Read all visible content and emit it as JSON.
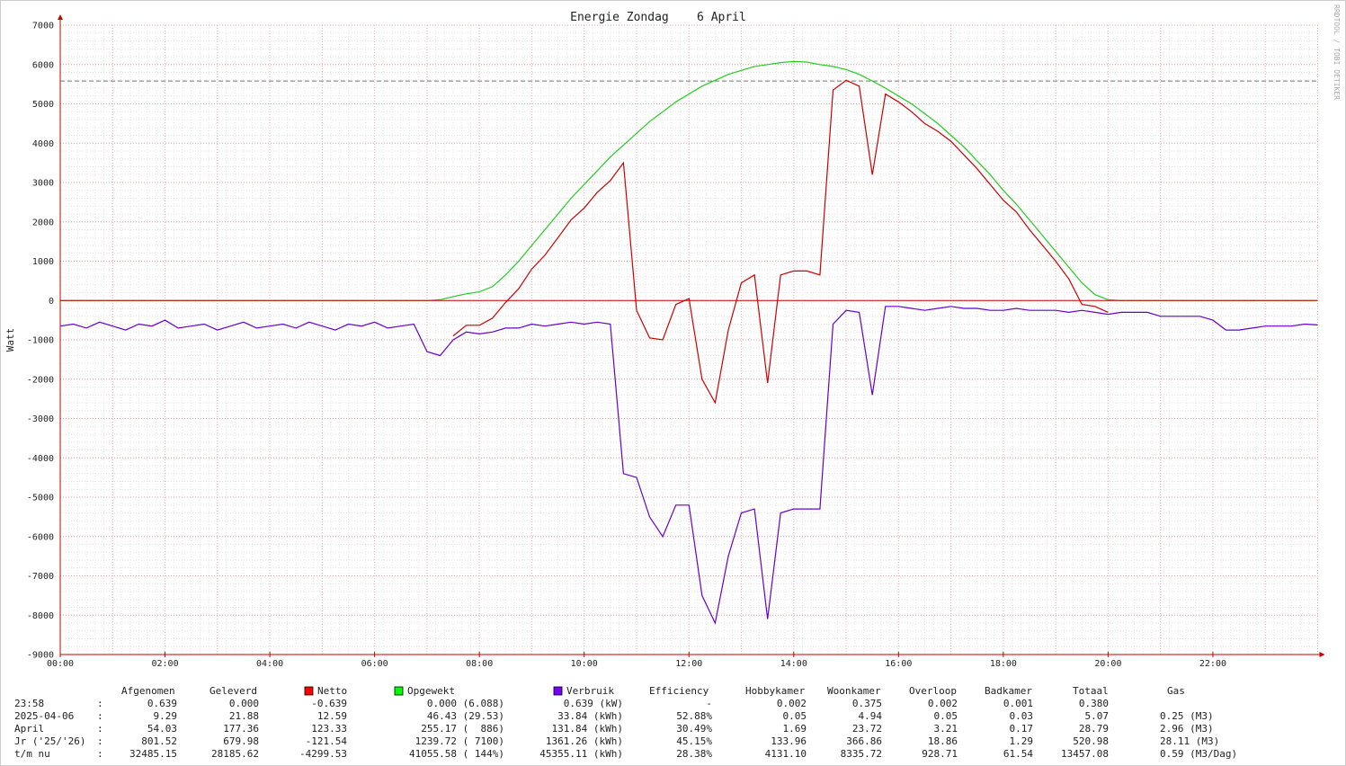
{
  "chart_data": {
    "type": "line",
    "title": "Energie Zondag    6 April",
    "y_label": "Watt",
    "watermark": "RRDTOOL / TOBI OETIKER",
    "xlim": [
      0,
      24
    ],
    "xticks": [
      {
        "value": 0,
        "label": "00:00"
      },
      {
        "value": 2,
        "label": "02:00"
      },
      {
        "value": 4,
        "label": "04:00"
      },
      {
        "value": 6,
        "label": "06:00"
      },
      {
        "value": 8,
        "label": "08:00"
      },
      {
        "value": 10,
        "label": "10:00"
      },
      {
        "value": 12,
        "label": "12:00"
      },
      {
        "value": 14,
        "label": "14:00"
      },
      {
        "value": 16,
        "label": "16:00"
      },
      {
        "value": 18,
        "label": "18:00"
      },
      {
        "value": 20,
        "label": "20:00"
      },
      {
        "value": 22,
        "label": "22:00"
      }
    ],
    "ylim": [
      -9000,
      7000
    ],
    "yticks": [
      -9000,
      -8000,
      -7000,
      -6000,
      -5000,
      -4000,
      -3000,
      -2000,
      -1000,
      0,
      1000,
      2000,
      3000,
      4000,
      5000,
      6000,
      7000
    ],
    "grid": true,
    "reference_line": 5580,
    "x": [
      0,
      0.25,
      0.5,
      0.75,
      1,
      1.25,
      1.5,
      1.75,
      2,
      2.25,
      2.5,
      2.75,
      3,
      3.25,
      3.5,
      3.75,
      4,
      4.25,
      4.5,
      4.75,
      5,
      5.25,
      5.5,
      5.75,
      6,
      6.25,
      6.5,
      6.75,
      7,
      7.25,
      7.5,
      7.75,
      8,
      8.25,
      8.5,
      8.75,
      9,
      9.25,
      9.5,
      9.75,
      10,
      10.25,
      10.5,
      10.75,
      11,
      11.25,
      11.5,
      11.75,
      12,
      12.25,
      12.5,
      12.75,
      13,
      13.25,
      13.5,
      13.75,
      14,
      14.25,
      14.5,
      14.75,
      15,
      15.25,
      15.5,
      15.75,
      16,
      16.25,
      16.5,
      16.75,
      17,
      17.25,
      17.5,
      17.75,
      18,
      18.25,
      18.5,
      18.75,
      19,
      19.25,
      19.5,
      19.75,
      20,
      20.25,
      20.5,
      20.75,
      21,
      21.25,
      21.5,
      21.75,
      22,
      22.25,
      22.5,
      22.75,
      23,
      23.25,
      23.5,
      23.75,
      24
    ],
    "series": [
      {
        "name": "Netto",
        "color": "#cc0000",
        "legend_color": "#ff0000",
        "values": [
          null,
          null,
          null,
          null,
          null,
          null,
          null,
          null,
          null,
          null,
          null,
          null,
          null,
          null,
          null,
          null,
          null,
          null,
          null,
          null,
          null,
          null,
          null,
          null,
          null,
          null,
          null,
          null,
          null,
          null,
          -900,
          -630,
          -630,
          -450,
          -50,
          300,
          800,
          1150,
          1600,
          2050,
          2350,
          2750,
          3050,
          3500,
          -250,
          -950,
          -1000,
          -100,
          50,
          -2000,
          -2600,
          -750,
          450,
          650,
          -2100,
          650,
          750,
          750,
          650,
          5350,
          5600,
          5450,
          3200,
          5250,
          5050,
          4800,
          4500,
          4300,
          4050,
          3700,
          3350,
          2950,
          2550,
          2250,
          1800,
          1400,
          1000,
          550,
          -100,
          -150,
          -300,
          null,
          null,
          null,
          null,
          null,
          null,
          null,
          null,
          null,
          null,
          null,
          null,
          null,
          null,
          null,
          null
        ]
      },
      {
        "name": "Opgewekt",
        "color": "#22cc22",
        "legend_color": "#00ff00",
        "values": [
          0,
          0,
          0,
          0,
          0,
          0,
          0,
          0,
          0,
          0,
          0,
          0,
          0,
          0,
          0,
          0,
          0,
          0,
          0,
          0,
          0,
          0,
          0,
          0,
          0,
          0,
          0,
          0,
          0,
          20,
          100,
          170,
          220,
          350,
          650,
          1000,
          1400,
          1800,
          2200,
          2600,
          2950,
          3300,
          3650,
          3950,
          4250,
          4550,
          4800,
          5050,
          5250,
          5450,
          5600,
          5750,
          5850,
          5950,
          6000,
          6050,
          6080,
          6060,
          6000,
          5950,
          5870,
          5750,
          5580,
          5400,
          5200,
          5000,
          4750,
          4500,
          4200,
          3900,
          3550,
          3200,
          2800,
          2450,
          2050,
          1650,
          1250,
          850,
          450,
          150,
          20,
          0,
          0,
          0,
          0,
          0,
          0,
          0,
          0,
          0,
          0,
          0,
          0,
          0,
          0,
          0,
          0
        ]
      },
      {
        "name": "Verbruik",
        "color": "#6600cc",
        "legend_color": "#7700ff",
        "values": [
          -650,
          -600,
          -700,
          -550,
          -650,
          -750,
          -600,
          -650,
          -500,
          -700,
          -650,
          -600,
          -750,
          -650,
          -550,
          -700,
          -650,
          -600,
          -700,
          -550,
          -650,
          -750,
          -600,
          -650,
          -550,
          -700,
          -650,
          -600,
          -1300,
          -1400,
          -1000,
          -800,
          -850,
          -800,
          -700,
          -700,
          -600,
          -650,
          -600,
          -550,
          -600,
          -550,
          -600,
          -4400,
          -4500,
          -5500,
          -6000,
          -5200,
          -5200,
          -7500,
          -8200,
          -6500,
          -5400,
          -5300,
          -8100,
          -5400,
          -5300,
          -5300,
          -5300,
          -600,
          -250,
          -300,
          -2400,
          -150,
          -150,
          -200,
          -250,
          -200,
          -150,
          -200,
          -200,
          -250,
          -250,
          -200,
          -250,
          -250,
          -250,
          -300,
          -250,
          -300,
          -350,
          -300,
          -300,
          -300,
          -400,
          -400,
          -400,
          -400,
          -500,
          -750,
          -750,
          -700,
          -650,
          -650,
          -650,
          -600,
          -620
        ]
      }
    ]
  },
  "table": {
    "headers": {
      "afgenomen": "Afgenomen",
      "geleverd": "Geleverd",
      "efficiency": "Efficiency",
      "hobbykamer": "Hobbykamer",
      "woonkamer": "Woonkamer",
      "overloop": "Overloop",
      "badkamer": "Badkamer",
      "totaal": "Totaal",
      "gas": "Gas"
    },
    "rows": [
      {
        "label": "23:58",
        "sep": ":",
        "cells": [
          "0.639",
          "0.000",
          "-0.639",
          "0.000 (6.088)",
          "0.639 (kW)",
          "-",
          "0.002",
          "0.375",
          "0.002",
          "0.001",
          "0.380"
        ]
      },
      {
        "label": "2025-04-06",
        "sep": ":",
        "cells": [
          "9.29",
          "21.88",
          "12.59",
          "46.43 (29.53)",
          "33.84 (kWh)",
          "52.88%",
          "0.05",
          "4.94",
          "0.05",
          "0.03",
          "5.07",
          "0.25 (M3)"
        ]
      },
      {
        "label": "April",
        "sep": ":",
        "cells": [
          "54.03",
          "177.36",
          "123.33",
          "255.17 (  886)",
          "131.84 (kWh)",
          "30.49%",
          "1.69",
          "23.72",
          "3.21",
          "0.17",
          "28.79",
          "2.96 (M3)"
        ]
      },
      {
        "label": "Jr ('25/'26)",
        "sep": ":",
        "cells": [
          "801.52",
          "679.98",
          "-121.54",
          "1239.72 ( 7100)",
          "1361.26 (kWh)",
          "45.15%",
          "133.96",
          "366.86",
          "18.86",
          "1.29",
          "520.98",
          "28.11 (M3)"
        ]
      },
      {
        "label": "t/m nu",
        "sep": ":",
        "cells": [
          "32485.15",
          "28185.62",
          "-4299.53",
          "41055.58 ( 144%)",
          "45355.11 (kWh)",
          "28.38%",
          "4131.10",
          "8335.72",
          "928.71",
          "61.54",
          "13457.08",
          "0.59 (M3/Dag)"
        ]
      }
    ]
  }
}
